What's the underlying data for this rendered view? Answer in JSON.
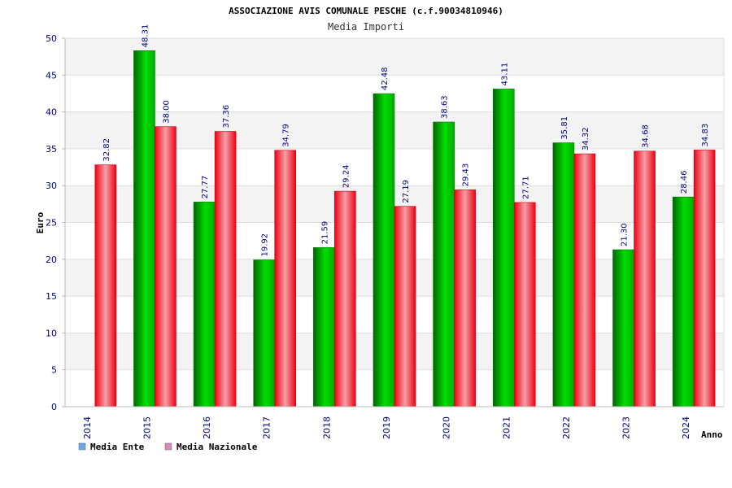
{
  "chart_data": {
    "type": "bar",
    "title": "ASSOCIAZIONE AVIS COMUNALE PESCHE (c.f.90034810946)",
    "subtitle": "Media Importi",
    "xlabel": "Anno",
    "ylabel": "Euro",
    "ylim": [
      0,
      50
    ],
    "yticks": [
      0,
      5,
      10,
      15,
      20,
      25,
      30,
      35,
      40,
      45,
      50
    ],
    "categories": [
      "2014",
      "2015",
      "2016",
      "2017",
      "2018",
      "2019",
      "2020",
      "2021",
      "2022",
      "2023",
      "2024"
    ],
    "series": [
      {
        "name": "Media Ente",
        "color": "#00cc00",
        "legend_color": "#66aaee",
        "values": [
          null,
          48.31,
          27.77,
          19.92,
          21.59,
          42.48,
          38.63,
          43.11,
          35.81,
          21.3,
          28.46
        ],
        "labels": [
          "",
          "48.31",
          "27.77",
          "19.92",
          "21.59",
          "42.48",
          "38.63",
          "43.11",
          "35.81",
          "21.30",
          "28.46"
        ]
      },
      {
        "name": "Media Nazionale",
        "color": "#ee1122",
        "legend_color": "#dd88bb",
        "values": [
          32.82,
          38.0,
          37.36,
          34.79,
          29.24,
          27.19,
          29.43,
          27.71,
          34.32,
          34.68,
          34.83
        ],
        "labels": [
          "32.82",
          "38.00",
          "37.36",
          "34.79",
          "29.24",
          "27.19",
          "29.43",
          "27.71",
          "34.32",
          "34.68",
          "34.83"
        ]
      }
    ],
    "grid": true,
    "legend": "bottom-left"
  }
}
